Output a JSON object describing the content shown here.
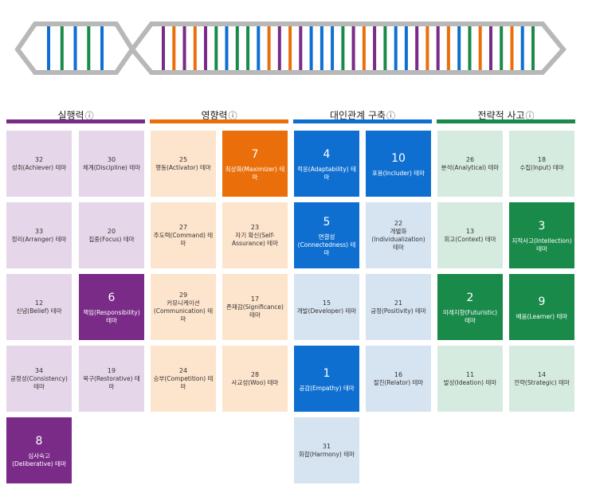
{
  "strand_colors": {
    "purple": "#7a2a87",
    "orange": "#ea6f0b",
    "blue": "#0f6fd1",
    "green": "#198a4a",
    "frame": "#b8b8b8"
  },
  "dna_strand_short": [
    "blue",
    "green",
    "blue",
    "green",
    "blue"
  ],
  "dna_strand_long": [
    "purple",
    "orange",
    "purple",
    "orange",
    "purple",
    "green",
    "blue",
    "green",
    "green",
    "blue",
    "orange",
    "purple",
    "orange",
    "purple",
    "blue",
    "blue",
    "blue",
    "green",
    "purple",
    "orange",
    "purple",
    "green",
    "blue",
    "blue",
    "purple",
    "orange",
    "purple",
    "orange",
    "blue",
    "green",
    "orange",
    "purple",
    "green",
    "orange",
    "blue",
    "green"
  ],
  "categories": [
    {
      "title": "실행력",
      "info": "ⓘ",
      "color": "#7a2a87"
    },
    {
      "title": "영향력",
      "info": "ⓘ",
      "color": "#ea6f0b"
    },
    {
      "title": "대인관계 구축",
      "info": "ⓘ",
      "color": "#0f6fd1"
    },
    {
      "title": "전략적 사고",
      "info": "ⓘ",
      "color": "#198a4a"
    }
  ],
  "tiles": {
    "t0_0": {
      "rank": "32",
      "name": "성취(Achiever) 테마"
    },
    "t0_1": {
      "rank": "30",
      "name": "체계(Discipline) 테마"
    },
    "t0_2": {
      "rank": "33",
      "name": "정리(Arranger) 테마"
    },
    "t0_3": {
      "rank": "20",
      "name": "집중(Focus) 테마"
    },
    "t0_4": {
      "rank": "12",
      "name": "신념(Belief) 테마"
    },
    "t0_5": {
      "rank": "6",
      "name": "책임(Responsibility) 테마"
    },
    "t0_6": {
      "rank": "34",
      "name": "공정성(Consistency) 테마"
    },
    "t0_7": {
      "rank": "19",
      "name": "복구(Restorative) 테마"
    },
    "t0_8": {
      "rank": "8",
      "name": "심사숙고(Deliberative) 테마"
    },
    "t1_0": {
      "rank": "25",
      "name": "행동(Activator) 테마"
    },
    "t1_1": {
      "rank": "7",
      "name": "최상화(Maximizer) 테마"
    },
    "t1_2": {
      "rank": "27",
      "name": "주도력(Command) 테마"
    },
    "t1_3": {
      "rank": "23",
      "name": "자기 확신(Self-Assurance) 테마"
    },
    "t1_4": {
      "rank": "29",
      "name": "커뮤니케이션(Communication) 테마"
    },
    "t1_5": {
      "rank": "17",
      "name": "존재감(Significance) 테마"
    },
    "t1_6": {
      "rank": "24",
      "name": "승부(Competition) 테마"
    },
    "t1_7": {
      "rank": "28",
      "name": "사교성(Woo) 테마"
    },
    "t2_0": {
      "rank": "4",
      "name": "적응(Adaptability) 테마"
    },
    "t2_1": {
      "rank": "10",
      "name": "포용(Includer) 테마"
    },
    "t2_2": {
      "rank": "5",
      "name": "연결성(Connectedness) 테마"
    },
    "t2_3": {
      "rank": "22",
      "name": "개별화(Individualization) 테마"
    },
    "t2_4": {
      "rank": "15",
      "name": "개발(Developer) 테마"
    },
    "t2_5": {
      "rank": "21",
      "name": "긍정(Positivity) 테마"
    },
    "t2_6": {
      "rank": "1",
      "name": "공감(Empathy) 테마"
    },
    "t2_7": {
      "rank": "16",
      "name": "절친(Relator) 테마"
    },
    "t2_8": {
      "rank": "31",
      "name": "화합(Harmony) 테마"
    },
    "t3_0": {
      "rank": "26",
      "name": "분석(Analytical) 테마"
    },
    "t3_1": {
      "rank": "18",
      "name": "수집(Input) 테마"
    },
    "t3_2": {
      "rank": "13",
      "name": "회고(Context) 테마"
    },
    "t3_3": {
      "rank": "3",
      "name": "지적사고(Intellection) 테마"
    },
    "t3_4": {
      "rank": "2",
      "name": "미래지향(Futuristic) 테마"
    },
    "t3_5": {
      "rank": "9",
      "name": "배움(Learner) 테마"
    },
    "t3_6": {
      "rank": "11",
      "name": "발상(Ideation) 테마"
    },
    "t3_7": {
      "rank": "14",
      "name": "전략(Strategic) 테마"
    }
  }
}
